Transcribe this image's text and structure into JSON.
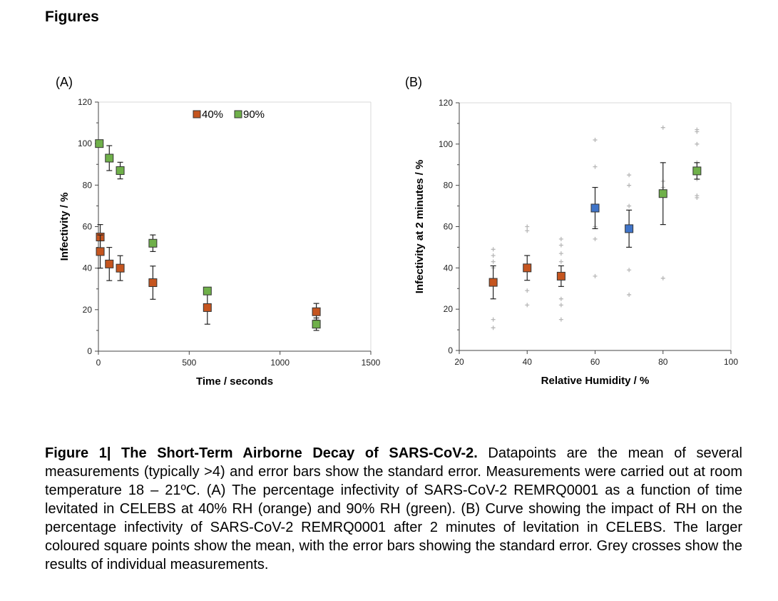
{
  "heading": "Figures",
  "caption": {
    "bold": "Figure 1| The Short-Term Airborne Decay of SARS-CoV-2.",
    "text": " Datapoints are the mean of several measurements (typically >4) and error bars show the standard error. Measurements were carried out at room temperature 18 – 21ºC. (A) The percentage infectivity of SARS-CoV-2 REMRQ0001 as a function of time levitated in CELEBS at 40% RH (orange) and 90% RH (green). (B) Curve showing the impact of RH on the percentage infectivity of SARS-CoV-2 REMRQ0001 after 2 minutes of levitation in CELEBS. The larger coloured square points show the mean, with the error bars showing the standard error. Grey crosses show the results of individual measurements."
  },
  "colors": {
    "orange": "#c5551f",
    "green": "#6fb04a",
    "blue": "#3f74c8",
    "grey": "#b7b7b7",
    "axis": "#444444"
  },
  "chart_data": [
    {
      "type": "scatter",
      "panel_label": "(A)",
      "xlabel": "Time / seconds",
      "ylabel": "Infectivity / %",
      "xlim": [
        0,
        1500
      ],
      "ylim": [
        0,
        120
      ],
      "xticks": [
        0,
        500,
        1000,
        1500
      ],
      "yticks": [
        0,
        20,
        40,
        60,
        80,
        100,
        120
      ],
      "legend": "top-center",
      "series": [
        {
          "name": "40%",
          "color": "#c5551f",
          "points": [
            {
              "x": 10,
              "y": 55,
              "err": 6
            },
            {
              "x": 10,
              "y": 48,
              "err": 8
            },
            {
              "x": 60,
              "y": 42,
              "err": 8
            },
            {
              "x": 120,
              "y": 40,
              "err": 6
            },
            {
              "x": 300,
              "y": 33,
              "err": 8
            },
            {
              "x": 600,
              "y": 21,
              "err": 8
            },
            {
              "x": 1200,
              "y": 19,
              "err": 4
            }
          ]
        },
        {
          "name": "90%",
          "color": "#6fb04a",
          "points": [
            {
              "x": 5,
              "y": 100,
              "err": 0
            },
            {
              "x": 60,
              "y": 93,
              "err": 6
            },
            {
              "x": 120,
              "y": 87,
              "err": 4
            },
            {
              "x": 300,
              "y": 52,
              "err": 4
            },
            {
              "x": 600,
              "y": 29,
              "err": 0
            },
            {
              "x": 1200,
              "y": 13,
              "err": 3
            }
          ]
        }
      ]
    },
    {
      "type": "scatter",
      "panel_label": "(B)",
      "xlabel": "Relative Humidity / %",
      "ylabel": "Infectivity at 2 minutes / %",
      "xlim": [
        20,
        100
      ],
      "ylim": [
        0,
        120
      ],
      "xticks": [
        20,
        40,
        60,
        80,
        100
      ],
      "yticks": [
        0,
        20,
        40,
        60,
        80,
        100,
        120
      ],
      "means": [
        {
          "x": 30,
          "y": 33,
          "err": 8,
          "color": "#c5551f"
        },
        {
          "x": 40,
          "y": 40,
          "err": 6,
          "color": "#c5551f"
        },
        {
          "x": 50,
          "y": 36,
          "err": 5,
          "color": "#c5551f"
        },
        {
          "x": 60,
          "y": 69,
          "err": 10,
          "color": "#3f74c8"
        },
        {
          "x": 70,
          "y": 59,
          "err": 9,
          "color": "#3f74c8"
        },
        {
          "x": 80,
          "y": 76,
          "err": 15,
          "color": "#6fb04a"
        },
        {
          "x": 90,
          "y": 87,
          "err": 4,
          "color": "#6fb04a"
        }
      ],
      "individual": [
        {
          "x": 30,
          "values": [
            49,
            46,
            43,
            40,
            15,
            11
          ]
        },
        {
          "x": 40,
          "values": [
            60,
            58,
            29,
            22
          ]
        },
        {
          "x": 50,
          "values": [
            54,
            51,
            47,
            43,
            25,
            22,
            15
          ]
        },
        {
          "x": 60,
          "values": [
            102,
            89,
            60,
            54,
            36
          ]
        },
        {
          "x": 70,
          "values": [
            85,
            80,
            70,
            39,
            27
          ]
        },
        {
          "x": 80,
          "values": [
            108,
            82,
            79,
            35
          ]
        },
        {
          "x": 90,
          "values": [
            107,
            106,
            100,
            91,
            83,
            75,
            74
          ]
        }
      ]
    }
  ]
}
